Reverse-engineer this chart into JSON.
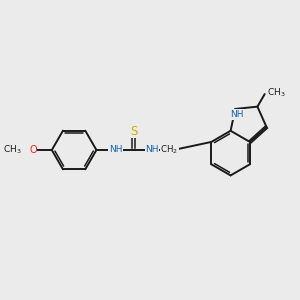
{
  "background_color": "#ebebeb",
  "bond_color": "#1a1a1a",
  "bond_width": 1.4,
  "atom_colors": {
    "N": "#1464b4",
    "O": "#e8221e",
    "S": "#c8b400",
    "C": "#1a1a1a"
  },
  "fs": 6.5,
  "fig_w": 3.0,
  "fig_h": 3.0,
  "dpi": 100,
  "xlim": [
    -0.3,
    8.7
  ],
  "ylim": [
    -2.2,
    2.2
  ]
}
